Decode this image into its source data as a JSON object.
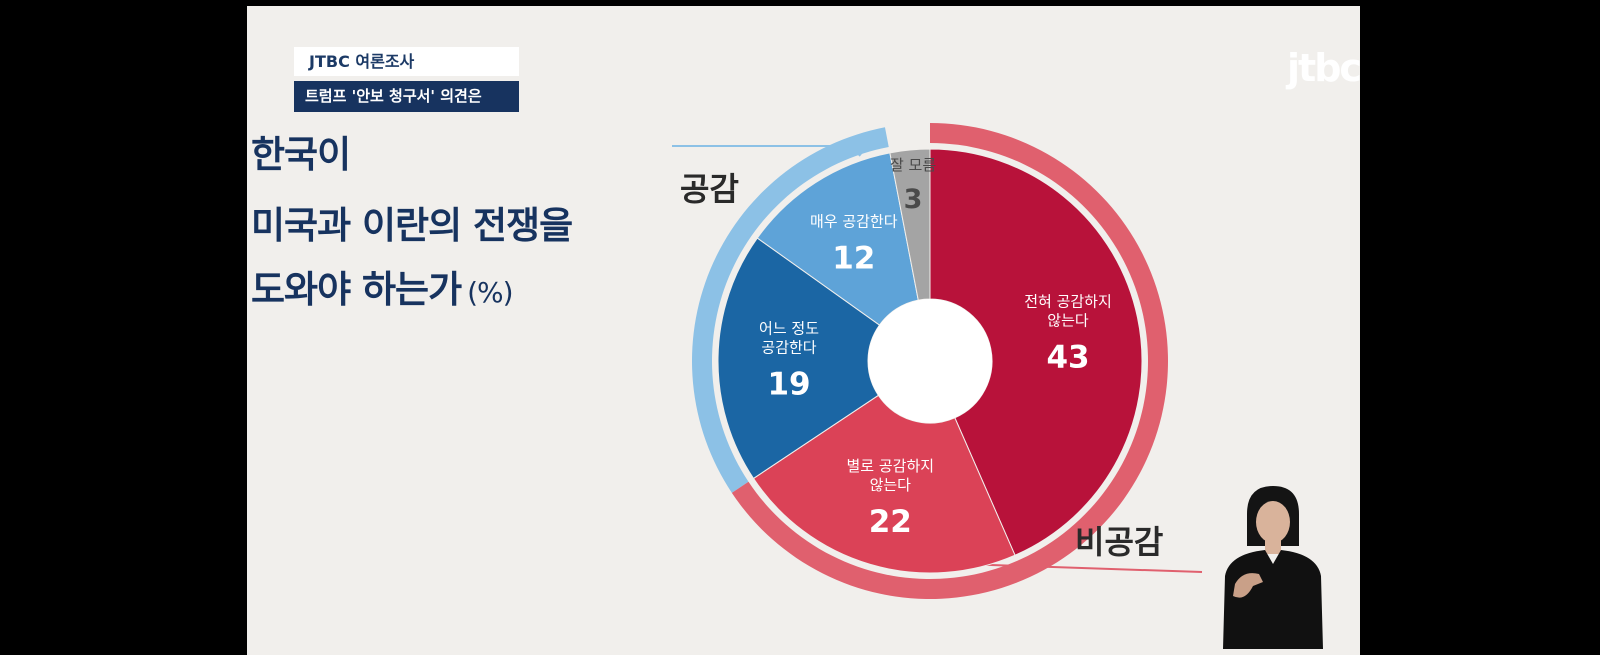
{
  "header": {
    "source_tag": "JTBC 여론조사",
    "topic_tag": "트럼프 '안보 청구서' 의견은"
  },
  "headline": {
    "line1": "한국이",
    "line2": "미국과 이란의 전쟁을",
    "line3": "도와야 하는가",
    "unit": "(%)"
  },
  "logo_text": "jtbc",
  "colors": {
    "background": "#f1efec",
    "navy": "#17335f",
    "agree_group": "#8cc1e6",
    "disagree_group": "#e0606e"
  },
  "chart_data": {
    "type": "pie",
    "variant": "donut",
    "unit": "%",
    "start": "top, clockwise",
    "slices": [
      {
        "label": "전혀 공감하지 않는다",
        "value": 43,
        "group": "비공감",
        "color": "#b8123a"
      },
      {
        "label": "별로 공감하지 않는다",
        "value": 22,
        "group": "비공감",
        "color": "#db4257"
      },
      {
        "label": "어느 정도 공감한다",
        "value": 19,
        "group": "공감",
        "color": "#1b66a4"
      },
      {
        "label": "매우 공감한다",
        "value": 12,
        "group": "공감",
        "color": "#5ea3d8"
      },
      {
        "label": "잘 모름",
        "value": 3,
        "group": "",
        "color": "#a4a4a4"
      }
    ],
    "groups": [
      {
        "name": "공감",
        "color": "#8cc1e6"
      },
      {
        "name": "비공감",
        "color": "#e0606e"
      }
    ]
  }
}
